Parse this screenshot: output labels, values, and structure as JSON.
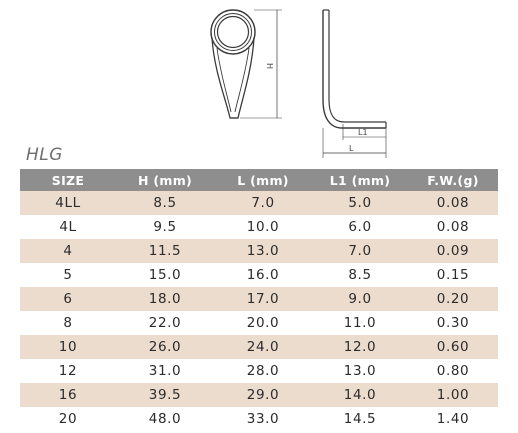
{
  "diagram": {
    "labels": {
      "h": "H",
      "l": "L",
      "l1": "L1"
    }
  },
  "table": {
    "title": "HLG",
    "headers": [
      "SIZE",
      "H (mm)",
      "L (mm)",
      "L1 (mm)",
      "F.W.(g)"
    ],
    "rows": [
      [
        "4LL",
        "8.5",
        "7.0",
        "5.0",
        "0.08"
      ],
      [
        "4L",
        "9.5",
        "10.0",
        "6.0",
        "0.08"
      ],
      [
        "4",
        "11.5",
        "13.0",
        "7.0",
        "0.09"
      ],
      [
        "5",
        "15.0",
        "16.0",
        "8.5",
        "0.15"
      ],
      [
        "6",
        "18.0",
        "17.0",
        "9.0",
        "0.20"
      ],
      [
        "8",
        "22.0",
        "20.0",
        "11.0",
        "0.30"
      ],
      [
        "10",
        "26.0",
        "24.0",
        "12.0",
        "0.60"
      ],
      [
        "12",
        "31.0",
        "28.0",
        "13.0",
        "0.80"
      ],
      [
        "16",
        "39.5",
        "29.0",
        "14.0",
        "1.00"
      ],
      [
        "20",
        "48.0",
        "33.0",
        "14.5",
        "1.40"
      ]
    ]
  }
}
